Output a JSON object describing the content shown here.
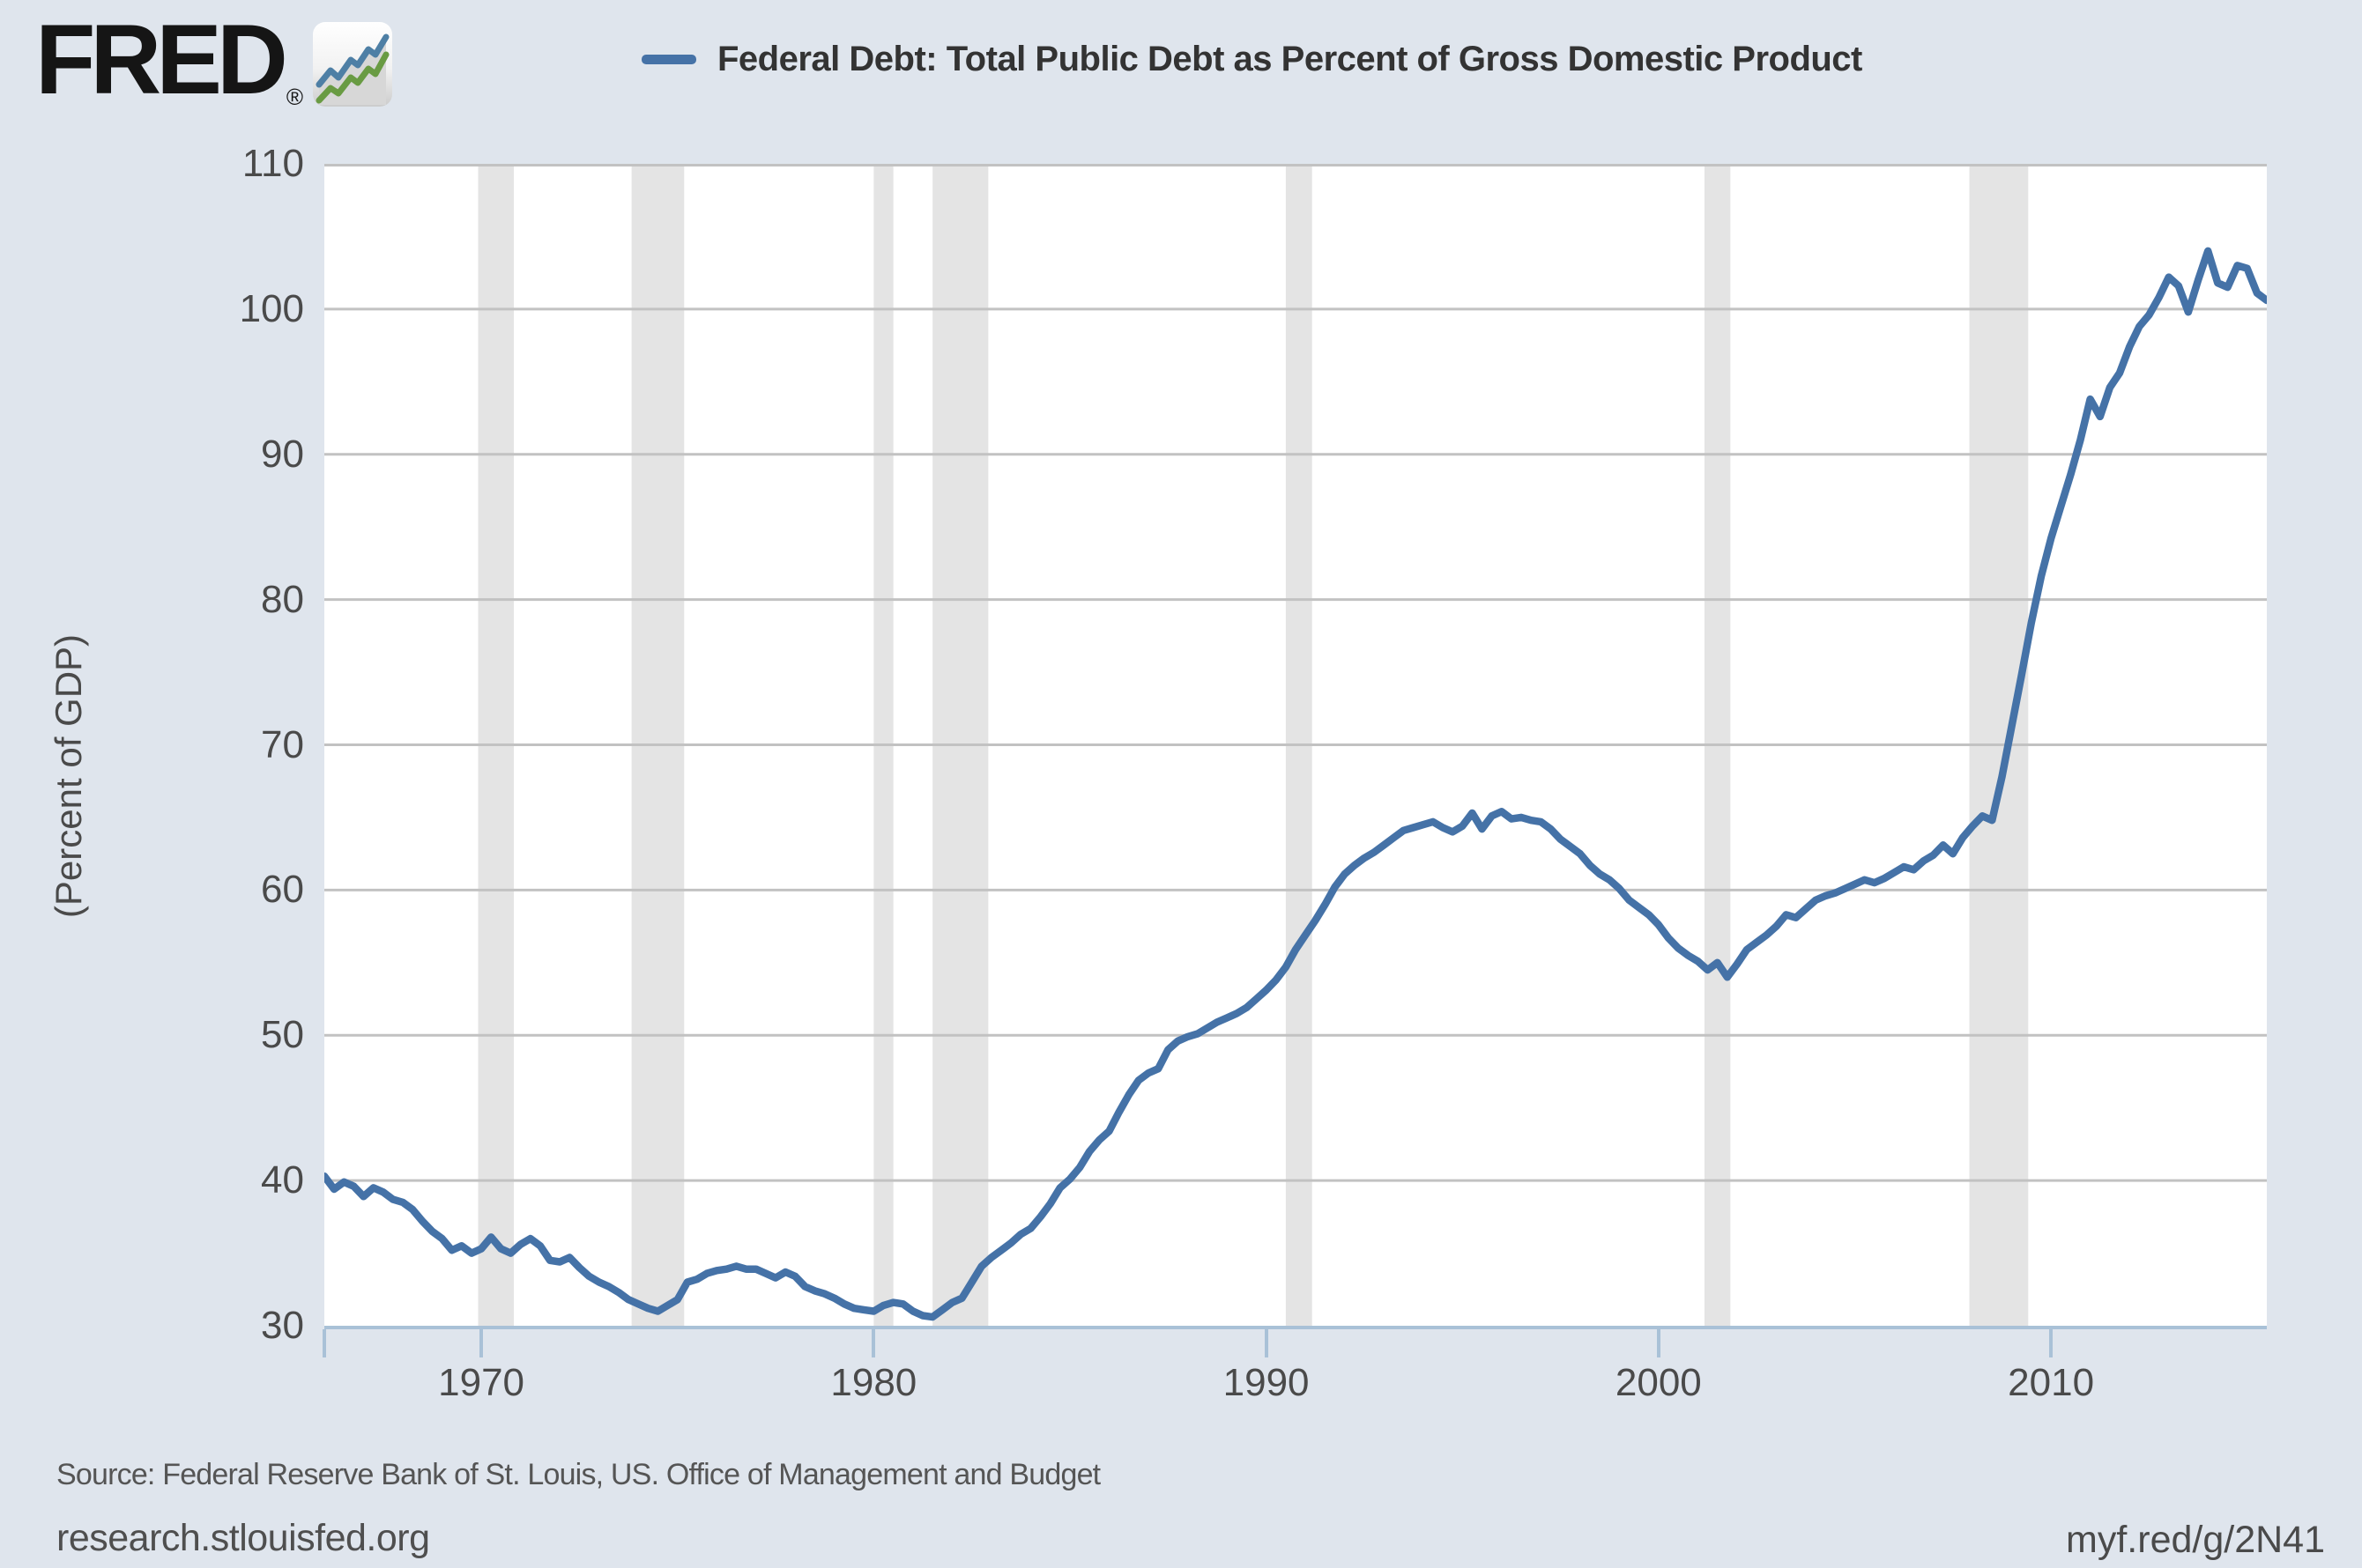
{
  "branding": {
    "logo_text": "FRED",
    "registered_mark": "®",
    "badge_icon": "fred-sparkline-badge"
  },
  "footer": {
    "source": "Source: Federal Reserve Bank of St. Louis, US. Office of Management and Budget",
    "site": "research.stlouisfed.org",
    "shortlink": "myf.red/g/2N41"
  },
  "colors": {
    "background": "#dfe5ed",
    "plot_background": "#ffffff",
    "line": "#4572a7",
    "gridline": "#c2c2c2",
    "axis": "#a9c1d7",
    "recession_band": "#e4e4e4",
    "tick_label": "#4a4a4a",
    "title_text": "#333333",
    "badge_blue": "#4e7fa5",
    "badge_green": "#699b43"
  },
  "chart_data": {
    "type": "line",
    "title": "Federal Debt: Total Public Debt as Percent of Gross Domestic Product",
    "ylabel": "(Percent of GDP)",
    "xlabel": "",
    "legend_position": "top",
    "grid": "horizontal",
    "ylim": [
      30,
      110
    ],
    "xlim": [
      1966.0,
      2015.5
    ],
    "y_ticks": [
      110,
      100,
      90,
      80,
      70,
      60,
      50,
      40,
      30
    ],
    "x_ticks": [
      1970,
      1980,
      1990,
      2000,
      2010
    ],
    "recession_bands": [
      [
        1969.92,
        1970.83
      ],
      [
        1973.83,
        1975.17
      ],
      [
        1980.0,
        1980.5
      ],
      [
        1981.5,
        1982.92
      ],
      [
        1990.5,
        1991.17
      ],
      [
        2001.17,
        2001.83
      ],
      [
        2007.92,
        2009.42
      ]
    ],
    "series": [
      {
        "name": "Federal Debt: Total Public Debt as Percent of Gross Domestic Product",
        "x_start": 1966.0,
        "x_step": 0.25,
        "values": [
          40.3,
          39.4,
          39.9,
          39.6,
          38.9,
          39.5,
          39.2,
          38.7,
          38.5,
          38.0,
          37.2,
          36.5,
          36.0,
          35.2,
          35.5,
          35.0,
          35.3,
          36.1,
          35.3,
          35.0,
          35.6,
          36.0,
          35.5,
          34.5,
          34.4,
          34.7,
          34.0,
          33.4,
          33.0,
          32.7,
          32.3,
          31.8,
          31.5,
          31.2,
          31.0,
          31.4,
          31.8,
          33.0,
          33.2,
          33.6,
          33.8,
          33.9,
          34.1,
          33.9,
          33.9,
          33.6,
          33.3,
          33.7,
          33.4,
          32.7,
          32.4,
          32.2,
          31.9,
          31.5,
          31.2,
          31.1,
          31.0,
          31.4,
          31.6,
          31.5,
          31.0,
          30.7,
          30.6,
          31.1,
          31.6,
          31.9,
          33.0,
          34.1,
          34.7,
          35.2,
          35.7,
          36.3,
          36.7,
          37.5,
          38.4,
          39.5,
          40.1,
          40.9,
          42.0,
          42.8,
          43.4,
          44.7,
          45.9,
          46.9,
          47.4,
          47.7,
          49.0,
          49.6,
          49.9,
          50.1,
          50.5,
          50.9,
          51.2,
          51.5,
          51.9,
          52.5,
          53.1,
          53.8,
          54.7,
          55.9,
          56.9,
          57.9,
          59.0,
          60.2,
          61.1,
          61.7,
          62.2,
          62.6,
          63.1,
          63.6,
          64.1,
          64.3,
          64.5,
          64.7,
          64.3,
          64.0,
          64.4,
          65.3,
          64.2,
          65.1,
          65.4,
          64.9,
          65.0,
          64.8,
          64.7,
          64.2,
          63.5,
          63.0,
          62.5,
          61.7,
          61.1,
          60.7,
          60.1,
          59.3,
          58.8,
          58.3,
          57.6,
          56.7,
          56.0,
          55.5,
          55.1,
          54.5,
          55.0,
          54.0,
          54.9,
          55.9,
          56.4,
          56.9,
          57.5,
          58.3,
          58.1,
          58.7,
          59.3,
          59.6,
          59.8,
          60.1,
          60.4,
          60.7,
          60.5,
          60.8,
          61.2,
          61.6,
          61.4,
          62.0,
          62.4,
          63.1,
          62.5,
          63.6,
          64.4,
          65.1,
          64.8,
          67.8,
          71.3,
          74.8,
          78.4,
          81.6,
          84.2,
          86.4,
          88.6,
          91.0,
          93.8,
          92.6,
          94.6,
          95.6,
          97.4,
          98.8,
          99.6,
          100.8,
          102.2,
          101.6,
          99.8,
          102.0,
          104.0,
          101.8,
          101.5,
          103.0,
          102.8,
          101.1,
          100.6
        ]
      }
    ]
  }
}
